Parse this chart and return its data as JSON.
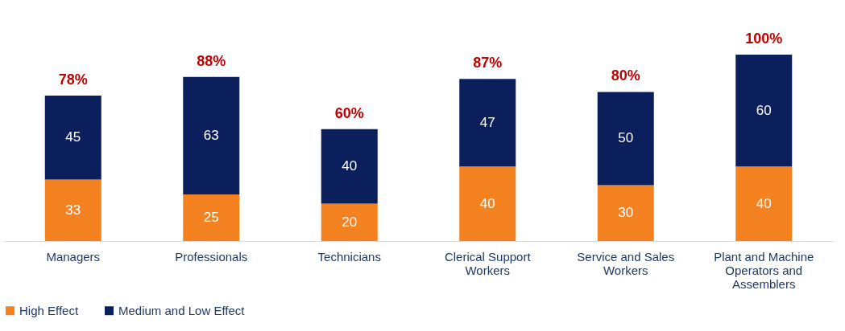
{
  "chart_data": {
    "type": "bar",
    "stacked": true,
    "data_labels": true,
    "legend": "bottom",
    "grid": false,
    "categories": [
      "Managers",
      "Professionals",
      "Technicians",
      "Clerical Support Workers",
      "Service and Sales Workers",
      "Plant and Machine Operators and Assemblers"
    ],
    "series": [
      {
        "name": "High Effect",
        "color": "#f58220",
        "values": [
          33,
          25,
          20,
          40,
          30,
          40
        ]
      },
      {
        "name": "Medium and Low Effect",
        "color": "#0b1f5c",
        "values": [
          45,
          63,
          40,
          47,
          50,
          60
        ]
      }
    ],
    "totals": [
      "78%",
      "88%",
      "60%",
      "87%",
      "80%",
      "100%"
    ]
  }
}
